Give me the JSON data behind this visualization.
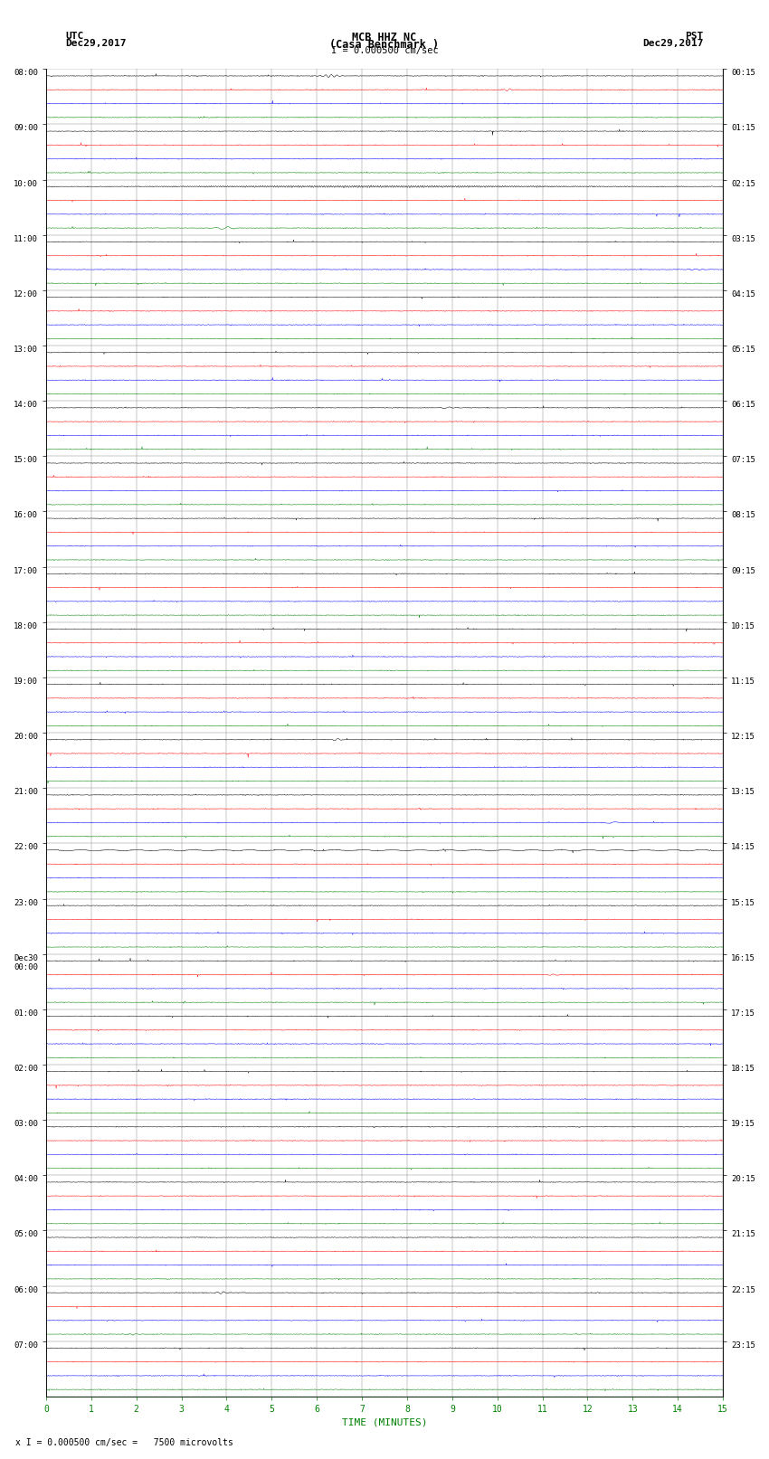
{
  "title_line1": "MCB HHZ NC",
  "title_line2": "(Casa Benchmark )",
  "scale_label": "I = 0.000500 cm/sec",
  "bottom_label": "x I = 0.000500 cm/sec =   7500 microvolts",
  "xlabel": "TIME (MINUTES)",
  "left_header1": "UTC",
  "left_header2": "Dec29,2017",
  "right_header1": "PST",
  "right_header2": "Dec29,2017",
  "utc_labels": [
    "08:00",
    "09:00",
    "10:00",
    "11:00",
    "12:00",
    "13:00",
    "14:00",
    "15:00",
    "16:00",
    "17:00",
    "18:00",
    "19:00",
    "20:00",
    "21:00",
    "22:00",
    "23:00",
    "Dec30\n00:00",
    "01:00",
    "02:00",
    "03:00",
    "04:00",
    "05:00",
    "06:00",
    "07:00"
  ],
  "pst_labels": [
    "00:15",
    "01:15",
    "02:15",
    "03:15",
    "04:15",
    "05:15",
    "06:15",
    "07:15",
    "08:15",
    "09:15",
    "10:15",
    "11:15",
    "12:15",
    "13:15",
    "14:15",
    "15:15",
    "16:15",
    "17:15",
    "18:15",
    "19:15",
    "20:15",
    "21:15",
    "22:15",
    "23:15"
  ],
  "n_hours": 24,
  "traces_per_hour": 4,
  "trace_colors": [
    "black",
    "red",
    "blue",
    "green"
  ],
  "bg_color": "#ffffff",
  "grid_color": "#808080",
  "n_minutes": 15,
  "seed": 42,
  "amp_base": 0.012,
  "amp_spike_prob": 0.003,
  "amp_spike_scale": 0.08,
  "hour10_osc_amp": 0.06,
  "hour10_osc_freq": 8.0,
  "hour22_osc_amp": 0.04,
  "hour22_osc_freq": 5.0
}
